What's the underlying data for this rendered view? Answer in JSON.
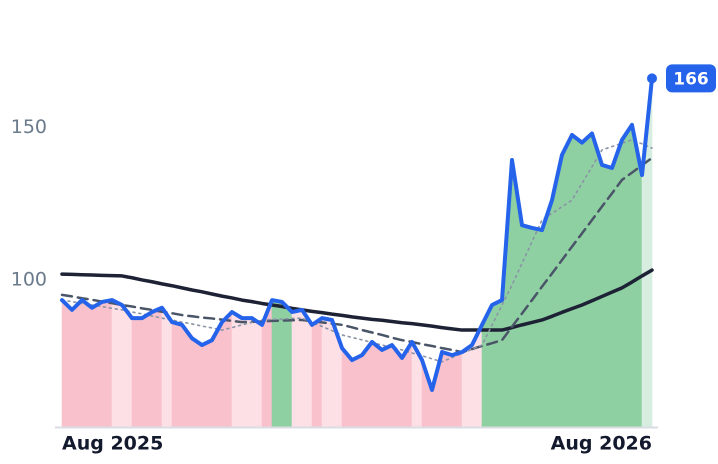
{
  "chart_data": {
    "type": "line",
    "categories": [
      "Aug 2025",
      null,
      null,
      null,
      null,
      null,
      null,
      null,
      null,
      null,
      null,
      null,
      null,
      null,
      null,
      null,
      null,
      null,
      null,
      null,
      null,
      null,
      null,
      null,
      null,
      null,
      null,
      null,
      null,
      null,
      null,
      null,
      null,
      null,
      null,
      null,
      null,
      null,
      null,
      null,
      null,
      null,
      null,
      null,
      null,
      null,
      null,
      null,
      null,
      null,
      null,
      null,
      null,
      null,
      null,
      null,
      null,
      null,
      null,
      "Aug 2026"
    ],
    "series": [
      {
        "color": "#2563eb",
        "line_style": "solid",
        "values": [
          93.5,
          90.3,
          93.5,
          91,
          92.9,
          93.5,
          91.9,
          87.6,
          87.6,
          89.6,
          91,
          86.3,
          85.4,
          81,
          78.8,
          80.4,
          86.3,
          89.6,
          87.6,
          87.6,
          85.4,
          93.5,
          92.9,
          89.6,
          90.3,
          85.4,
          87.6,
          87,
          77.8,
          73.9,
          75.5,
          79.8,
          77.2,
          78.8,
          74.6,
          79.8,
          73.9,
          64.1,
          76.5,
          75.5,
          76.5,
          78.8,
          85.4,
          91.9,
          93.5,
          139.3,
          118,
          117.1,
          116.4,
          126.2,
          141,
          147.5,
          145,
          148,
          137.7,
          136.7,
          145.9,
          150.8,
          134.4,
          166
        ]
      },
      {
        "color": "#1e2235",
        "line_style": "solid",
        "values": [
          102,
          101.9,
          101.8,
          101.7,
          101.6,
          101.5,
          101.4,
          100.8,
          100.1,
          99.5,
          98.8,
          98.2,
          97.5,
          96.8,
          96.2,
          95.5,
          94.8,
          94.2,
          93.5,
          93,
          92.4,
          91.9,
          91.4,
          90.8,
          90.3,
          89.8,
          89.4,
          88.9,
          88.5,
          88,
          87.6,
          87.2,
          86.9,
          86.5,
          86.1,
          85.8,
          85.4,
          85,
          84.5,
          84.1,
          83.7,
          83.7,
          83.7,
          83.7,
          83.7,
          84.5,
          85.4,
          86.2,
          87,
          88.2,
          89.5,
          90.7,
          91.9,
          93.3,
          94.7,
          96.1,
          97.5,
          99.4,
          101.4,
          103.3
        ]
      },
      {
        "color": "#4a5568",
        "line_style": "dashed",
        "values": [
          95.2,
          94.7,
          94.1,
          93.6,
          93,
          92.5,
          91.9,
          91.4,
          90.8,
          90.3,
          89.7,
          89.2,
          88.6,
          88.2,
          87.8,
          87.5,
          87.1,
          86.7,
          86.3,
          86.4,
          86.5,
          86.7,
          86.8,
          86.9,
          87,
          86.6,
          86.2,
          85.8,
          85.4,
          84.6,
          83.7,
          82.9,
          82.1,
          81.2,
          80.4,
          79.8,
          79.1,
          78.5,
          77.8,
          77.2,
          76.5,
          77.5,
          78.5,
          79.4,
          80.4,
          84.8,
          89.1,
          93.5,
          97.9,
          102.2,
          106.6,
          111,
          115.3,
          119.7,
          124.1,
          128.4,
          132.8,
          135.2,
          137.6,
          140
        ]
      },
      {
        "color": "#8a94a6",
        "line_style": "dotted",
        "values": [
          93.5,
          93,
          92.4,
          91.9,
          91.4,
          90.8,
          90.3,
          89.6,
          89,
          88.3,
          87.6,
          87,
          86.3,
          85.7,
          85,
          84.4,
          83.7,
          84.5,
          85.4,
          86.2,
          87,
          87.2,
          87.3,
          87.5,
          87.6,
          86.2,
          84.9,
          83.5,
          82.1,
          81.3,
          80.5,
          79.6,
          78.8,
          78,
          77.2,
          76.2,
          75.3,
          74.3,
          73.3,
          74.7,
          76.1,
          77.4,
          78.8,
          85.3,
          91.9,
          98.4,
          105.5,
          112.6,
          119.7,
          121.9,
          124,
          126.2,
          131.7,
          137.1,
          142.6,
          143.7,
          144.8,
          145.9,
          144.6,
          143.2
        ]
      }
    ],
    "ylim": [
      52,
      190
    ],
    "yticks": [
      100,
      150
    ],
    "grid": false
  }
}
